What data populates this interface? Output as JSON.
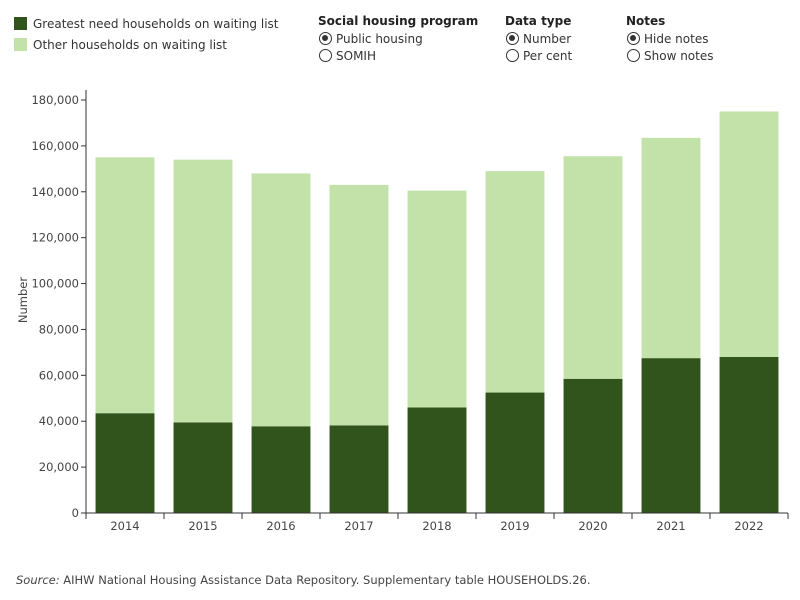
{
  "legend": {
    "items": [
      {
        "label": "Greatest need households on waiting list",
        "color": "#31541c"
      },
      {
        "label": "Other households on waiting list",
        "color": "#c3e2a9"
      }
    ]
  },
  "controls": {
    "program": {
      "title": "Social housing program",
      "options": [
        "Public housing",
        "SOMIH"
      ],
      "selected": 0
    },
    "data_type": {
      "title": "Data type",
      "options": [
        "Number",
        "Per cent"
      ],
      "selected": 0
    },
    "notes": {
      "title": "Notes",
      "options": [
        "Hide notes",
        "Show notes"
      ],
      "selected": 0
    }
  },
  "chart_data": {
    "type": "bar",
    "stacked": true,
    "categories": [
      "2014",
      "2015",
      "2016",
      "2017",
      "2018",
      "2019",
      "2020",
      "2021",
      "2022"
    ],
    "series": [
      {
        "name": "Greatest need households on waiting list",
        "color": "#31541c",
        "values": [
          43500,
          39500,
          37800,
          38200,
          46000,
          52500,
          58500,
          67500,
          68000
        ]
      },
      {
        "name": "Other households on waiting list",
        "color": "#c3e2a9",
        "values": [
          111500,
          114500,
          110200,
          104800,
          94500,
          96500,
          97000,
          96000,
          107000
        ]
      }
    ],
    "ylabel": "Number",
    "xlabel": "",
    "ylim": [
      0,
      180000
    ],
    "yticks": [
      0,
      20000,
      40000,
      60000,
      80000,
      100000,
      120000,
      140000,
      160000,
      180000
    ],
    "ytick_labels": [
      "0",
      "20,000",
      "40,000",
      "60,000",
      "80,000",
      "100,000",
      "120,000",
      "140,000",
      "160,000",
      "180,000"
    ]
  },
  "source": {
    "label": "Source:",
    "text": " AIHW National Housing Assistance Data Repository. Supplementary table HOUSEHOLDS.26."
  }
}
